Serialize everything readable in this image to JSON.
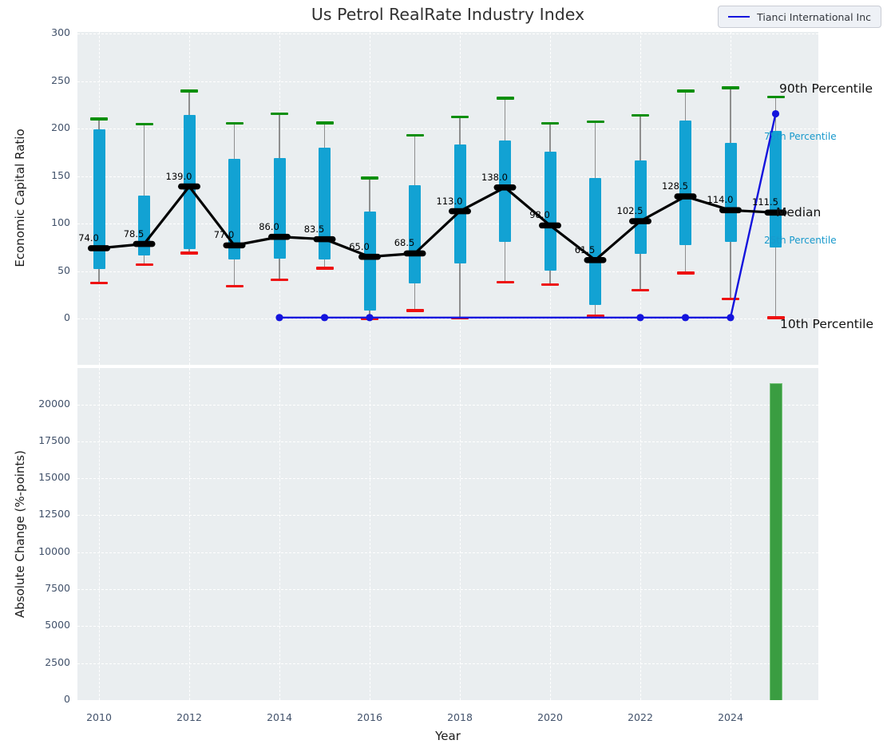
{
  "title": "Us Petrol RealRate Industry Index",
  "legend": {
    "label": "Tianci International Inc"
  },
  "axis_labels": {
    "x": "Year",
    "y_top": "Economic Capital Ratio",
    "y_bottom": "Absolute Change (%-points)"
  },
  "percentile_labels": {
    "p90": "90th Percentile",
    "p75": "75th Percentile",
    "median": "Median",
    "p25": "25th Percentile",
    "p10": "10th Percentile"
  },
  "colors": {
    "axes_bg": "#eaeef0",
    "candle": "#12a2d3",
    "whisker": "#8e8e8e",
    "cap_90": "#0c8f0c",
    "cap_10": "#ee1111",
    "median_line": "#000000",
    "company_line": "#1414dd",
    "bar_fill": "#3a9d41",
    "bar_edge": "#77c37a",
    "pct_small_text": "#1899cc",
    "tick_text": "#42526b"
  },
  "chart_data": [
    {
      "type": "candlestick",
      "title": "Us Petrol RealRate Industry Index",
      "ylabel": "Economic Capital Ratio",
      "ylim": [
        -48,
        302
      ],
      "y_ticks": [
        0,
        50,
        100,
        150,
        200,
        250,
        300
      ],
      "x_ticks": [
        2010,
        2012,
        2014,
        2016,
        2018,
        2020,
        2022,
        2024
      ],
      "grid": true,
      "legend_position": "upper right",
      "years": [
        2010,
        2011,
        2012,
        2013,
        2014,
        2015,
        2016,
        2017,
        2018,
        2019,
        2020,
        2021,
        2022,
        2023,
        2024,
        2025
      ],
      "p90": [
        210,
        204.5,
        239.5,
        205.5,
        215.5,
        206,
        148,
        193,
        212,
        232,
        205.5,
        207,
        214,
        239.5,
        243,
        233
      ],
      "p75": [
        199,
        129.5,
        214,
        168,
        168.5,
        180,
        112.5,
        140.5,
        183.5,
        187.5,
        175.5,
        148,
        166,
        208,
        185,
        197.5
      ],
      "median": [
        74.0,
        78.5,
        139.0,
        77.0,
        86.0,
        83.5,
        65.0,
        68.5,
        113.0,
        138.0,
        98.0,
        61.5,
        102.5,
        128.5,
        114.0,
        111.5
      ],
      "p25": [
        52,
        66,
        73,
        62,
        63,
        62,
        8,
        37,
        58,
        81,
        50,
        14.5,
        68,
        77.5,
        80.5,
        75
      ],
      "p10": [
        37.5,
        56.5,
        69,
        34,
        40.5,
        53,
        0,
        8.5,
        0.5,
        38,
        35.5,
        2.5,
        30,
        48,
        20.5,
        1
      ],
      "median_labels": [
        "74.0",
        "78.5",
        "139.0",
        "77.0",
        "86.0",
        "83.5",
        "65.0",
        "68.5",
        "113.0",
        "138.0",
        "98.0",
        "61.5",
        "102.5",
        "128.5",
        "114.0",
        "111.5"
      ],
      "series": [
        {
          "name": "Tianci International Inc",
          "x": [
            2014,
            2015,
            2016,
            2017,
            2018,
            2019,
            2020,
            2021,
            2022,
            2023,
            2024,
            2025
          ],
          "values": [
            1,
            1,
            1,
            1,
            1,
            1,
            1,
            1,
            1,
            1,
            1,
            215.5
          ],
          "marker_years": [
            2014,
            2015,
            2016,
            2022,
            2023,
            2024,
            2025
          ]
        }
      ]
    },
    {
      "type": "bar",
      "xlabel": "Year",
      "ylabel": "Absolute Change (%-points)",
      "ylim": [
        0,
        22460
      ],
      "y_ticks": [
        0,
        2500,
        5000,
        7500,
        10000,
        12500,
        15000,
        17500,
        20000
      ],
      "x_ticks": [
        2010,
        2012,
        2014,
        2016,
        2018,
        2020,
        2022,
        2024
      ],
      "grid": true,
      "categories": [
        2025
      ],
      "values": [
        21450
      ]
    }
  ]
}
